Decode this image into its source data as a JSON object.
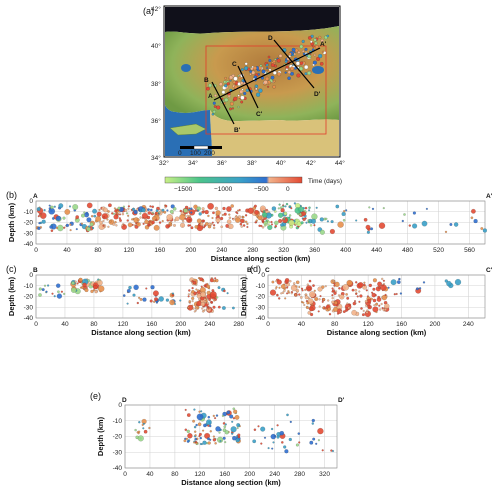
{
  "panel_labels": {
    "a": "(a)",
    "b": "(b)",
    "c": "(c)",
    "d": "(d)",
    "e": "(e)"
  },
  "map": {
    "lon_ticks": [
      "32°",
      "34°",
      "36°",
      "38°",
      "40°",
      "42°",
      "44°"
    ],
    "lat_ticks": [
      "42°",
      "40°",
      "38°",
      "36°",
      "34°"
    ],
    "profile_labels": [
      "A",
      "A'",
      "B",
      "B'",
      "C",
      "C'",
      "D",
      "D'"
    ],
    "scale_labels": [
      "0",
      "100",
      "200"
    ]
  },
  "colorbar": {
    "label": "Time (days)",
    "ticks": [
      "−1500",
      "−1000",
      "−500",
      "0"
    ],
    "colors": [
      "#c8ef86",
      "#4cc48a",
      "#3aa0c8",
      "#2f6fd0",
      "#f2b28a",
      "#e34a33"
    ]
  },
  "chart_data": [
    {
      "panel": "b",
      "type": "scatter",
      "section_start": "A",
      "section_end": "A'",
      "xlabel": "Distance along section (km)",
      "ylabel": "Depth (km)",
      "xlim": [
        0,
        580
      ],
      "ylim": [
        -40,
        0
      ],
      "xticks": [
        "0",
        "40",
        "80",
        "120",
        "160",
        "200",
        "240",
        "280",
        "320",
        "360",
        "400",
        "440",
        "480",
        "520",
        "560"
      ],
      "yticks": [
        "0",
        "-10",
        "-20",
        "-30",
        "-40"
      ],
      "grid": true,
      "clusters": [
        {
          "xr": [
            0,
            80
          ],
          "yr": [
            -28,
            -3
          ],
          "n": 70,
          "colors": [
            "#e34a33",
            "#e8904c",
            "#3aa0c8",
            "#2f6fd0",
            "#9ad88a"
          ]
        },
        {
          "xr": [
            80,
            300
          ],
          "yr": [
            -25,
            -4
          ],
          "n": 240,
          "colors": [
            "#e34a33",
            "#e34a33",
            "#e8904c",
            "#f2b28a"
          ]
        },
        {
          "xr": [
            100,
            220
          ],
          "yr": [
            -12,
            -5
          ],
          "n": 30,
          "colors": [
            "#2f6fd0",
            "#3aa0c8",
            "#9ad88a"
          ]
        },
        {
          "xr": [
            290,
            360
          ],
          "yr": [
            -25,
            -2
          ],
          "n": 100,
          "colors": [
            "#4cc48a",
            "#9ad88a",
            "#3aa0c8",
            "#c8ef86",
            "#e34a33"
          ]
        },
        {
          "xr": [
            360,
            580
          ],
          "yr": [
            -30,
            -5
          ],
          "n": 40,
          "colors": [
            "#e34a33",
            "#3aa0c8",
            "#e8904c",
            "#9ad88a",
            "#2f6fd0"
          ]
        }
      ]
    },
    {
      "panel": "c",
      "type": "scatter",
      "section_start": "B",
      "section_end": "B'",
      "xlabel": "Distance along section (km)",
      "ylabel": "Depth (km)",
      "xlim": [
        0,
        290
      ],
      "ylim": [
        -40,
        0
      ],
      "xticks": [
        "0",
        "40",
        "80",
        "120",
        "160",
        "200",
        "240",
        "280"
      ],
      "yticks": [
        "0",
        "-10",
        "-20",
        "-30",
        "-40"
      ],
      "grid": true,
      "clusters": [
        {
          "xr": [
            5,
            40
          ],
          "yr": [
            -20,
            -3
          ],
          "n": 14,
          "colors": [
            "#3aa0c8",
            "#e34a33",
            "#9ad88a",
            "#2f6fd0"
          ]
        },
        {
          "xr": [
            50,
            90
          ],
          "yr": [
            -16,
            -3
          ],
          "n": 45,
          "colors": [
            "#e34a33",
            "#e8904c",
            "#f2b28a",
            "#3aa0c8",
            "#9ad88a"
          ]
        },
        {
          "xr": [
            120,
            200
          ],
          "yr": [
            -27,
            -10
          ],
          "n": 30,
          "colors": [
            "#e34a33",
            "#e8904c",
            "#2f6fd0",
            "#3aa0c8"
          ]
        },
        {
          "xr": [
            210,
            250
          ],
          "yr": [
            -34,
            -2
          ],
          "n": 110,
          "colors": [
            "#e34a33",
            "#e34a33",
            "#e8904c",
            "#f2b28a"
          ]
        },
        {
          "xr": [
            250,
            285
          ],
          "yr": [
            -36,
            -5
          ],
          "n": 8,
          "colors": [
            "#9ad88a",
            "#3aa0c8",
            "#e34a33"
          ]
        }
      ]
    },
    {
      "panel": "d",
      "type": "scatter",
      "section_start": "C",
      "section_end": "C'",
      "xlabel": "Distance along section (km)",
      "ylabel": "Depth (km)",
      "xlim": [
        0,
        260
      ],
      "ylim": [
        -40,
        0
      ],
      "xticks": [
        "0",
        "40",
        "80",
        "120",
        "160",
        "200",
        "240"
      ],
      "yticks": [
        "0",
        "-10",
        "-20",
        "-30",
        "-40"
      ],
      "grid": true,
      "clusters": [
        {
          "xr": [
            5,
            40
          ],
          "yr": [
            -22,
            -3
          ],
          "n": 40,
          "colors": [
            "#e34a33",
            "#e8904c",
            "#f2b28a"
          ]
        },
        {
          "xr": [
            40,
            145
          ],
          "yr": [
            -37,
            -3
          ],
          "n": 170,
          "colors": [
            "#e34a33",
            "#e34a33",
            "#e8904c",
            "#f2b28a"
          ]
        },
        {
          "xr": [
            140,
            190
          ],
          "yr": [
            -20,
            -2
          ],
          "n": 12,
          "colors": [
            "#3aa0c8",
            "#2f6fd0",
            "#e34a33"
          ]
        },
        {
          "xr": [
            200,
            255
          ],
          "yr": [
            -10,
            -2
          ],
          "n": 4,
          "colors": [
            "#3aa0c8",
            "#e34a33"
          ]
        }
      ]
    },
    {
      "panel": "e",
      "type": "scatter",
      "section_start": "D",
      "section_end": "D'",
      "xlabel": "Distance along section (km)",
      "ylabel": "Depth (km)",
      "xlim": [
        0,
        340
      ],
      "ylim": [
        -40,
        0
      ],
      "xticks": [
        "0",
        "40",
        "80",
        "120",
        "160",
        "200",
        "240",
        "280",
        "320"
      ],
      "yticks": [
        "0",
        "-10",
        "-20",
        "-30",
        "-40"
      ],
      "grid": true,
      "clusters": [
        {
          "xr": [
            15,
            45
          ],
          "yr": [
            -22,
            -8
          ],
          "n": 14,
          "colors": [
            "#e34a33",
            "#e8904c",
            "#3aa0c8",
            "#9ad88a"
          ]
        },
        {
          "xr": [
            95,
            185
          ],
          "yr": [
            -25,
            -2
          ],
          "n": 100,
          "colors": [
            "#e34a33",
            "#e8904c",
            "#3aa0c8",
            "#2f6fd0",
            "#9ad88a"
          ]
        },
        {
          "xr": [
            200,
            260
          ],
          "yr": [
            -30,
            -5
          ],
          "n": 20,
          "colors": [
            "#e34a33",
            "#3aa0c8",
            "#2f6fd0"
          ]
        },
        {
          "xr": [
            260,
            335
          ],
          "yr": [
            -30,
            -2
          ],
          "n": 16,
          "colors": [
            "#3aa0c8",
            "#2f6fd0",
            "#9ad88a",
            "#e34a33"
          ]
        }
      ]
    }
  ]
}
